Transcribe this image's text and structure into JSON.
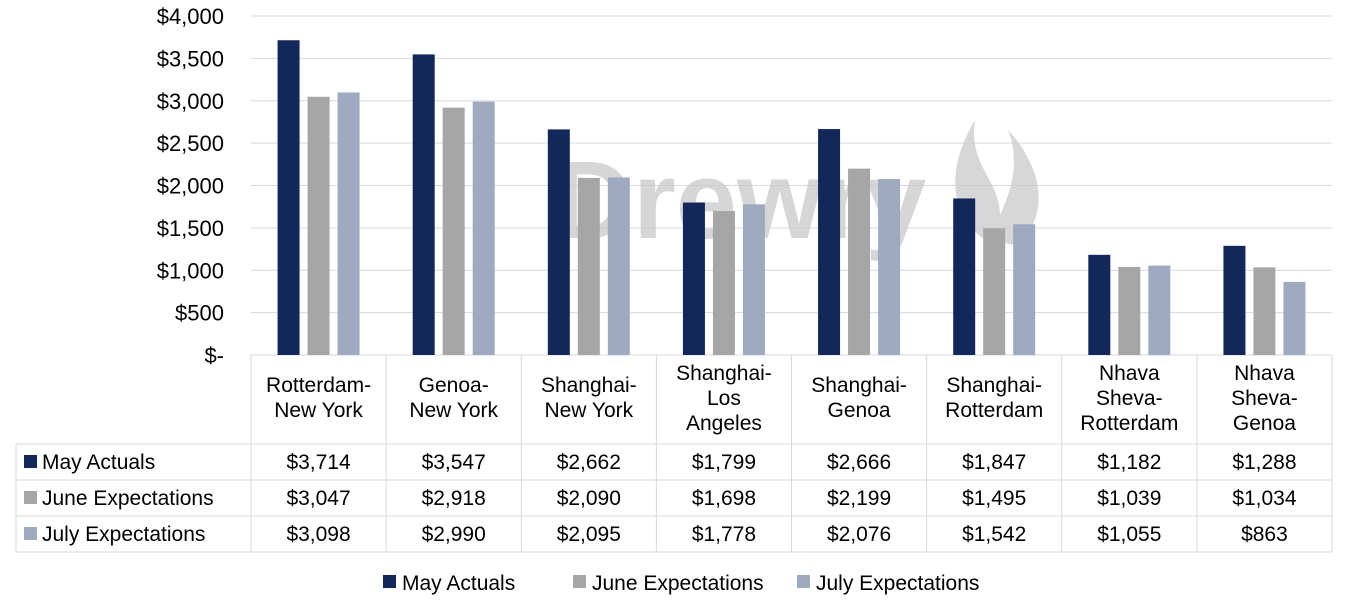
{
  "chart_data": {
    "type": "bar",
    "title": "",
    "xlabel": "",
    "ylabel": "",
    "ylim": [
      0,
      4000
    ],
    "yticks": [
      0,
      500,
      1000,
      1500,
      2000,
      2500,
      3000,
      3500,
      4000
    ],
    "ytick_labels": [
      "$-",
      "$500",
      "$1,000",
      "$1,500",
      "$2,000",
      "$2,500",
      "$3,000",
      "$3,500",
      "$4,000"
    ],
    "grid": true,
    "legend_position": "bottom",
    "watermark": "Drewry",
    "categories": [
      [
        "Rotterdam-",
        "New York"
      ],
      [
        "Genoa-",
        "New York"
      ],
      [
        "Shanghai-",
        "New York"
      ],
      [
        "Shanghai-",
        "Los",
        "Angeles"
      ],
      [
        "Shanghai-",
        "Genoa"
      ],
      [
        "Shanghai-",
        "Rotterdam"
      ],
      [
        "Nhava",
        "Sheva-",
        "Rotterdam"
      ],
      [
        "Nhava",
        "Sheva-",
        "Genoa"
      ]
    ],
    "series": [
      {
        "name": "May Actuals",
        "color": "#13285a",
        "values": [
          3714,
          3547,
          2662,
          1799,
          2666,
          1847,
          1182,
          1288
        ],
        "labels": [
          "$3,714",
          "$3,547",
          "$2,662",
          "$1,799",
          "$2,666",
          "$1,847",
          "$1,182",
          "$1,288"
        ]
      },
      {
        "name": "June Expectations",
        "color": "#a6a6a6",
        "values": [
          3047,
          2918,
          2090,
          1698,
          2199,
          1495,
          1039,
          1034
        ],
        "labels": [
          "$3,047",
          "$2,918",
          "$2,090",
          "$1,698",
          "$2,199",
          "$1,495",
          "$1,039",
          "$1,034"
        ]
      },
      {
        "name": "July Expectations",
        "color": "#9eaabf",
        "values": [
          3098,
          2990,
          2095,
          1778,
          2076,
          1542,
          1055,
          863
        ],
        "labels": [
          "$3,098",
          "$2,990",
          "$2,095",
          "$1,778",
          "$2,076",
          "$1,542",
          "$1,055",
          "$863"
        ]
      }
    ]
  }
}
